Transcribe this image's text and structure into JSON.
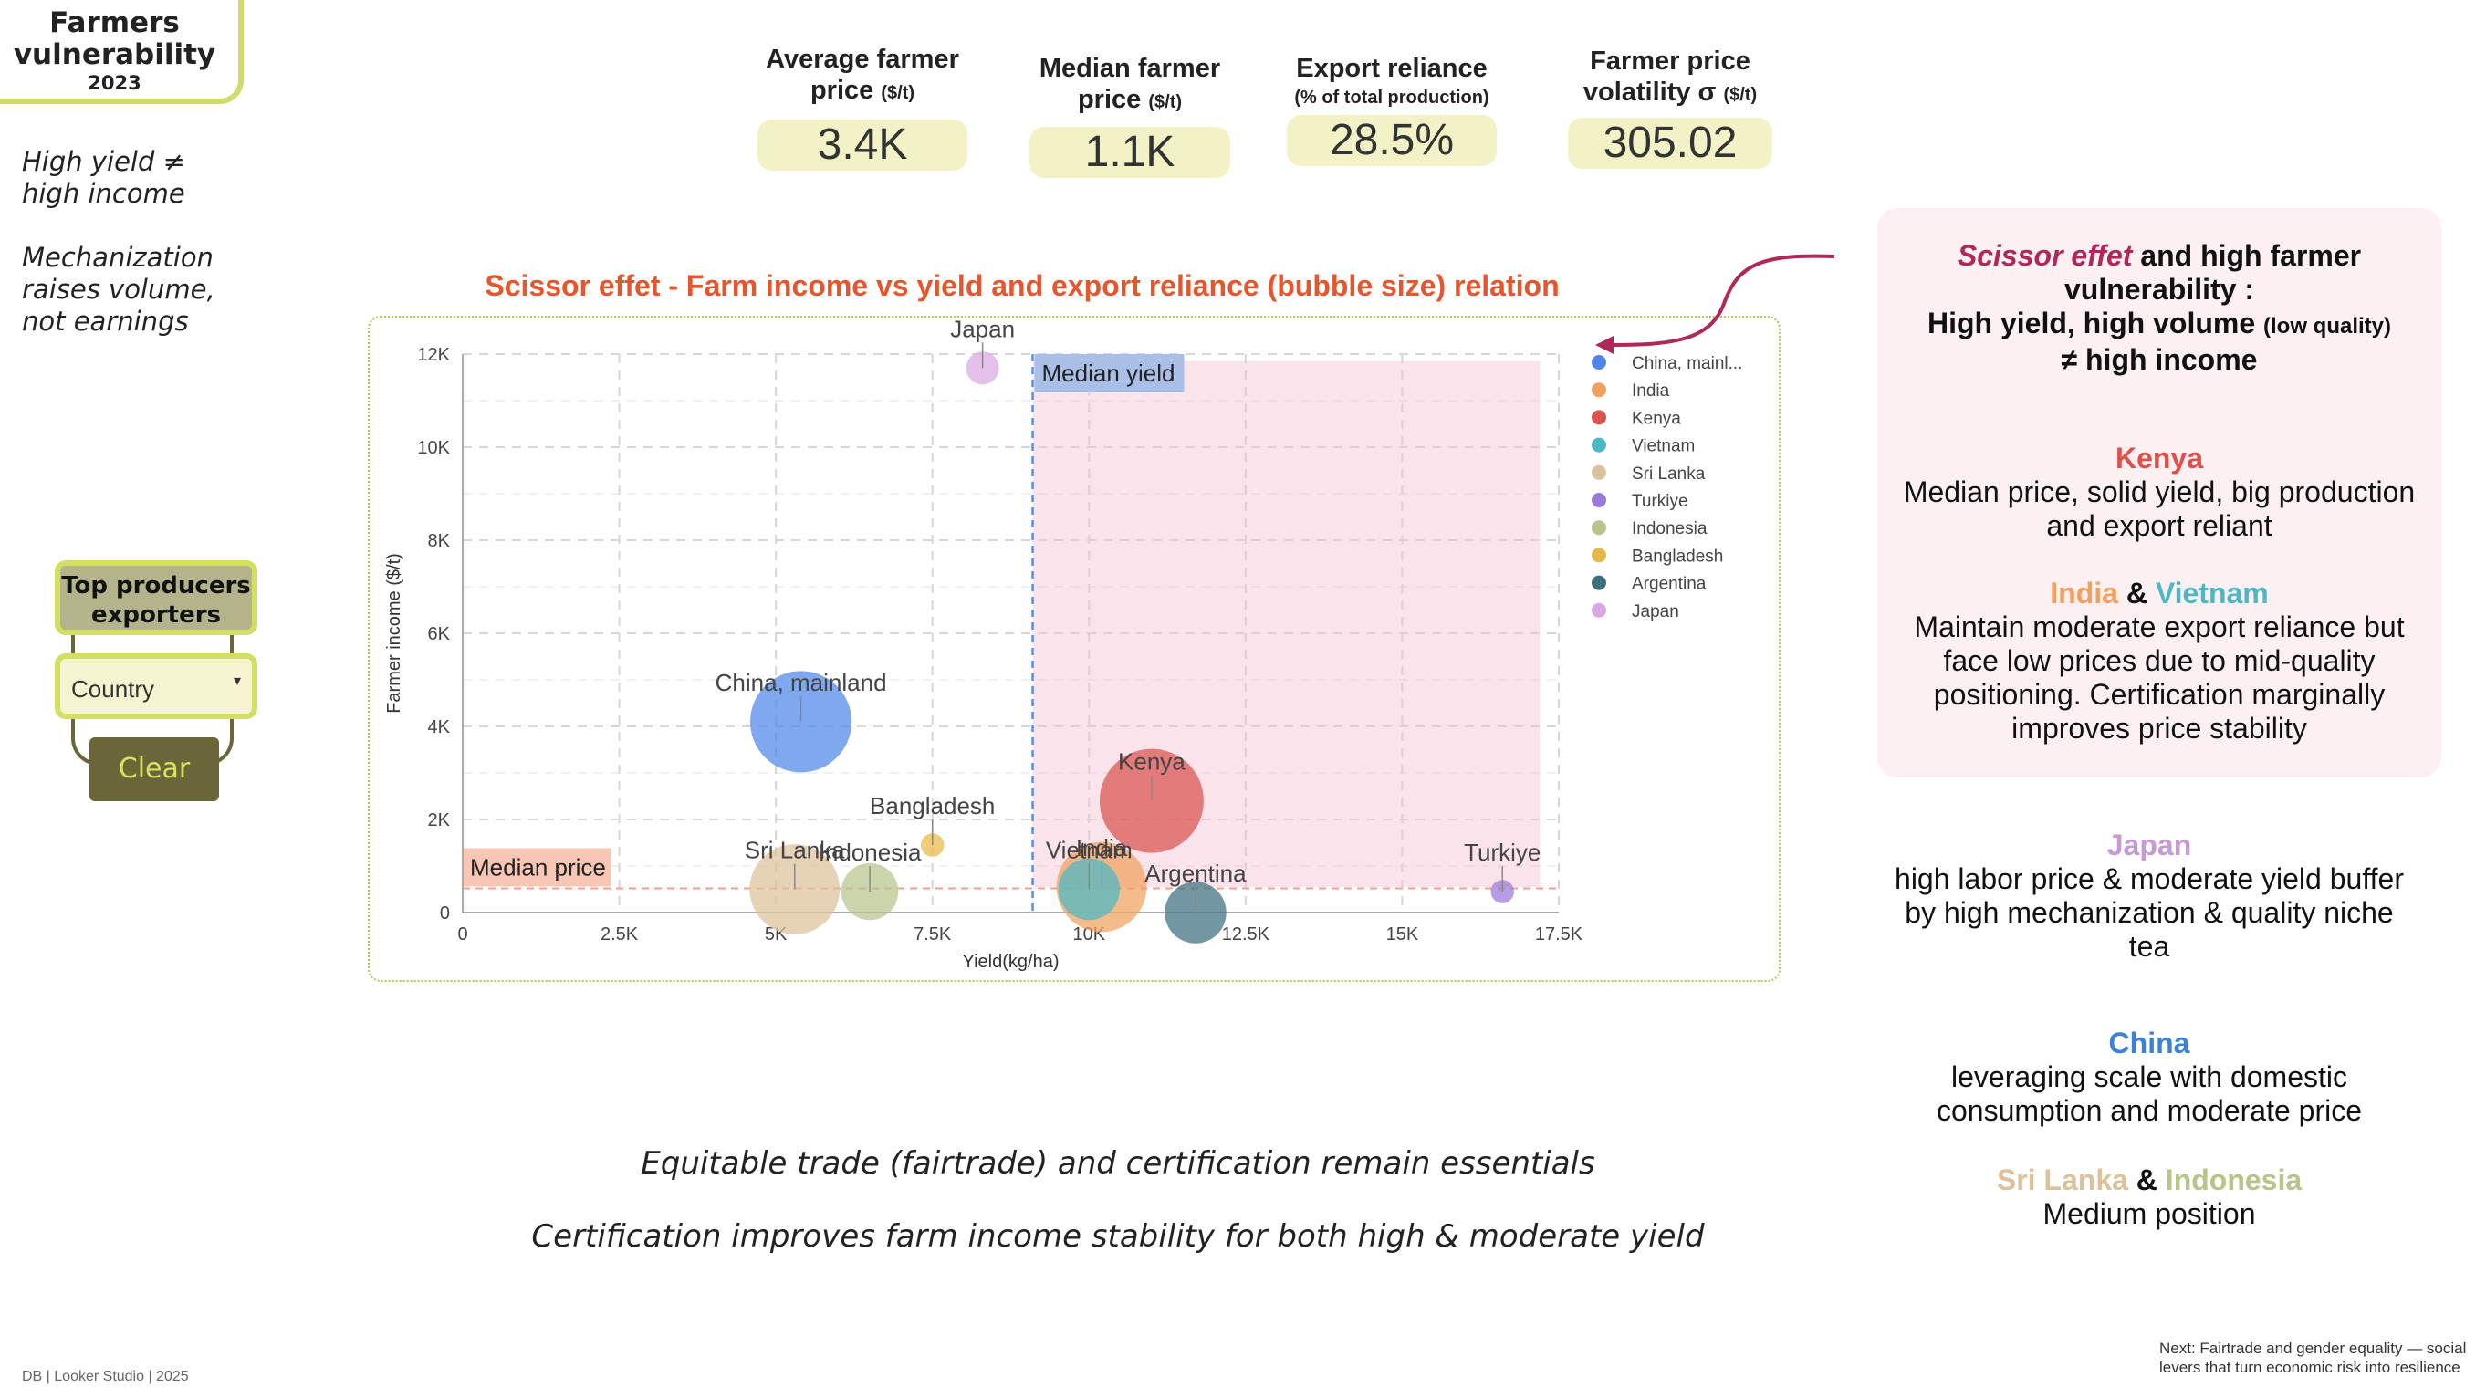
{
  "header": {
    "title_line1": "Farmers",
    "title_line2": "vulnerability",
    "year": "2023"
  },
  "side_notes": {
    "note1_line1": "High yield ≠",
    "note1_line2": "high income",
    "note2_line1": "Mechanization",
    "note2_line2": "raises volume,",
    "note2_line3": "not earnings"
  },
  "kpis": [
    {
      "label_line1": "Average farmer",
      "label_line2": "price",
      "unit": "($/t)",
      "value": "3.4K"
    },
    {
      "label_line1": "Median farmer",
      "label_line2": "price",
      "unit": "($/t)",
      "value": "1.1K"
    },
    {
      "label_line1": "Export reliance",
      "label_line2": "",
      "unit": "(% of total production)",
      "value": "28.5%"
    },
    {
      "label_line1": "Farmer price",
      "label_line2": "volatility σ",
      "unit": "($/t)",
      "value": "305.02"
    }
  ],
  "controls": {
    "top_button_line1": "Top producers",
    "top_button_line2": "exporters",
    "country_label": "Country",
    "clear_label": "Clear"
  },
  "chart_data": {
    "type": "scatter",
    "title": "Scissor effet - Farm income vs yield and export reliance (bubble size) relation",
    "xlabel": "Yield(kg/ha)",
    "ylabel": "Farmer income ($/t)",
    "xlim": [
      0,
      17500
    ],
    "ylim": [
      0,
      12000
    ],
    "x_ticks": [
      "0",
      "2.5K",
      "5K",
      "7.5K",
      "10K",
      "12.5K",
      "15K",
      "17.5K"
    ],
    "y_ticks": [
      "0",
      "2K",
      "4K",
      "6K",
      "8K",
      "10K",
      "12K"
    ],
    "grid": true,
    "legend_position": "right",
    "median_yield": {
      "label": "Median yield",
      "x": 9100
    },
    "median_price": {
      "label": "Median price",
      "y": 520
    },
    "points": [
      {
        "label": "China, mainland",
        "legend": "China, mainl...",
        "x": 5400,
        "y": 4100,
        "size": 0.95,
        "color": "#4f86e8"
      },
      {
        "label": "India",
        "legend": "India",
        "x": 10200,
        "y": 550,
        "size": 0.75,
        "color": "#f0a15e"
      },
      {
        "label": "Kenya",
        "legend": "Kenya",
        "x": 11000,
        "y": 2400,
        "size": 1.0,
        "color": "#d9534f"
      },
      {
        "label": "Vietnam",
        "legend": "Vietnam",
        "x": 10000,
        "y": 500,
        "size": 0.35,
        "color": "#4cb8c4"
      },
      {
        "label": "Sri Lanka",
        "legend": "Sri Lanka",
        "x": 5300,
        "y": 500,
        "size": 0.75,
        "color": "#dcc29a"
      },
      {
        "label": "Turkiye",
        "legend": "Turkiye",
        "x": 16600,
        "y": 450,
        "size": 0.05,
        "color": "#9b79d9"
      },
      {
        "label": "Indonesia",
        "legend": "Indonesia",
        "x": 6500,
        "y": 450,
        "size": 0.3,
        "color": "#b6c58a"
      },
      {
        "label": "Bangladesh",
        "legend": "Bangladesh",
        "x": 7500,
        "y": 1450,
        "size": 0.05,
        "color": "#e6b84a"
      },
      {
        "label": "Argentina",
        "legend": "Argentina",
        "x": 11700,
        "y": 0,
        "size": 0.35,
        "color": "#3d6f7e"
      },
      {
        "label": "Japan",
        "legend": "Japan",
        "x": 8300,
        "y": 11700,
        "size": 0.1,
        "color": "#d8a9e3"
      }
    ]
  },
  "right_panel": {
    "scissor_title": "Scissor effet",
    "scissor_rest": " and high farmer",
    "line2": "vulnerability :",
    "line3_a": "High yield",
    "line3_b": ", high volume ",
    "line3_small": "(low quality)",
    "line4": "≠ high income",
    "kenya_title": "Kenya",
    "kenya_text1": "Median price, solid yield, big production",
    "kenya_text2": "and export reliant",
    "india": "India",
    "amp": " & ",
    "vietnam": "Vietnam",
    "iv_text1": "Maintain moderate export reliance but",
    "iv_text2": "face low prices due to mid-quality",
    "iv_text3": "positioning. Certification marginally",
    "iv_text4": "improves price stability"
  },
  "notes": {
    "japan_title": "Japan",
    "japan_text1": "high labor price & moderate yield buffer",
    "japan_text2": "by high mechanization & quality niche",
    "japan_text3": "tea",
    "china_title": "China",
    "china_text1": "leveraging scale with domestic",
    "china_text2": "consumption and moderate price",
    "srilanka": "Sri Lanka",
    "amp": " & ",
    "indonesia": "Indonesia",
    "sli_text": "Medium position"
  },
  "bottom": {
    "line1": "Equitable trade (fairtrade) and certification remain essentials",
    "line2": "Certification improves farm income stability for both high & moderate yield"
  },
  "footer": {
    "credit": "DB  | Looker Studio | 2025",
    "next1": "Next: Fairtrade and gender equality — social",
    "next2": "levers that turn economic risk into resilience"
  },
  "colors": {
    "accent": "#cfdc6a",
    "chart_title": "#e8552c",
    "scissor": "#b0275a",
    "kenya": "#e0504a",
    "india": "#f0a15e",
    "vietnam": "#4cb8c4",
    "japan": "#c79ad6",
    "china": "#3b82d6",
    "srilanka": "#dcc29a",
    "indonesia": "#b6c58a"
  }
}
